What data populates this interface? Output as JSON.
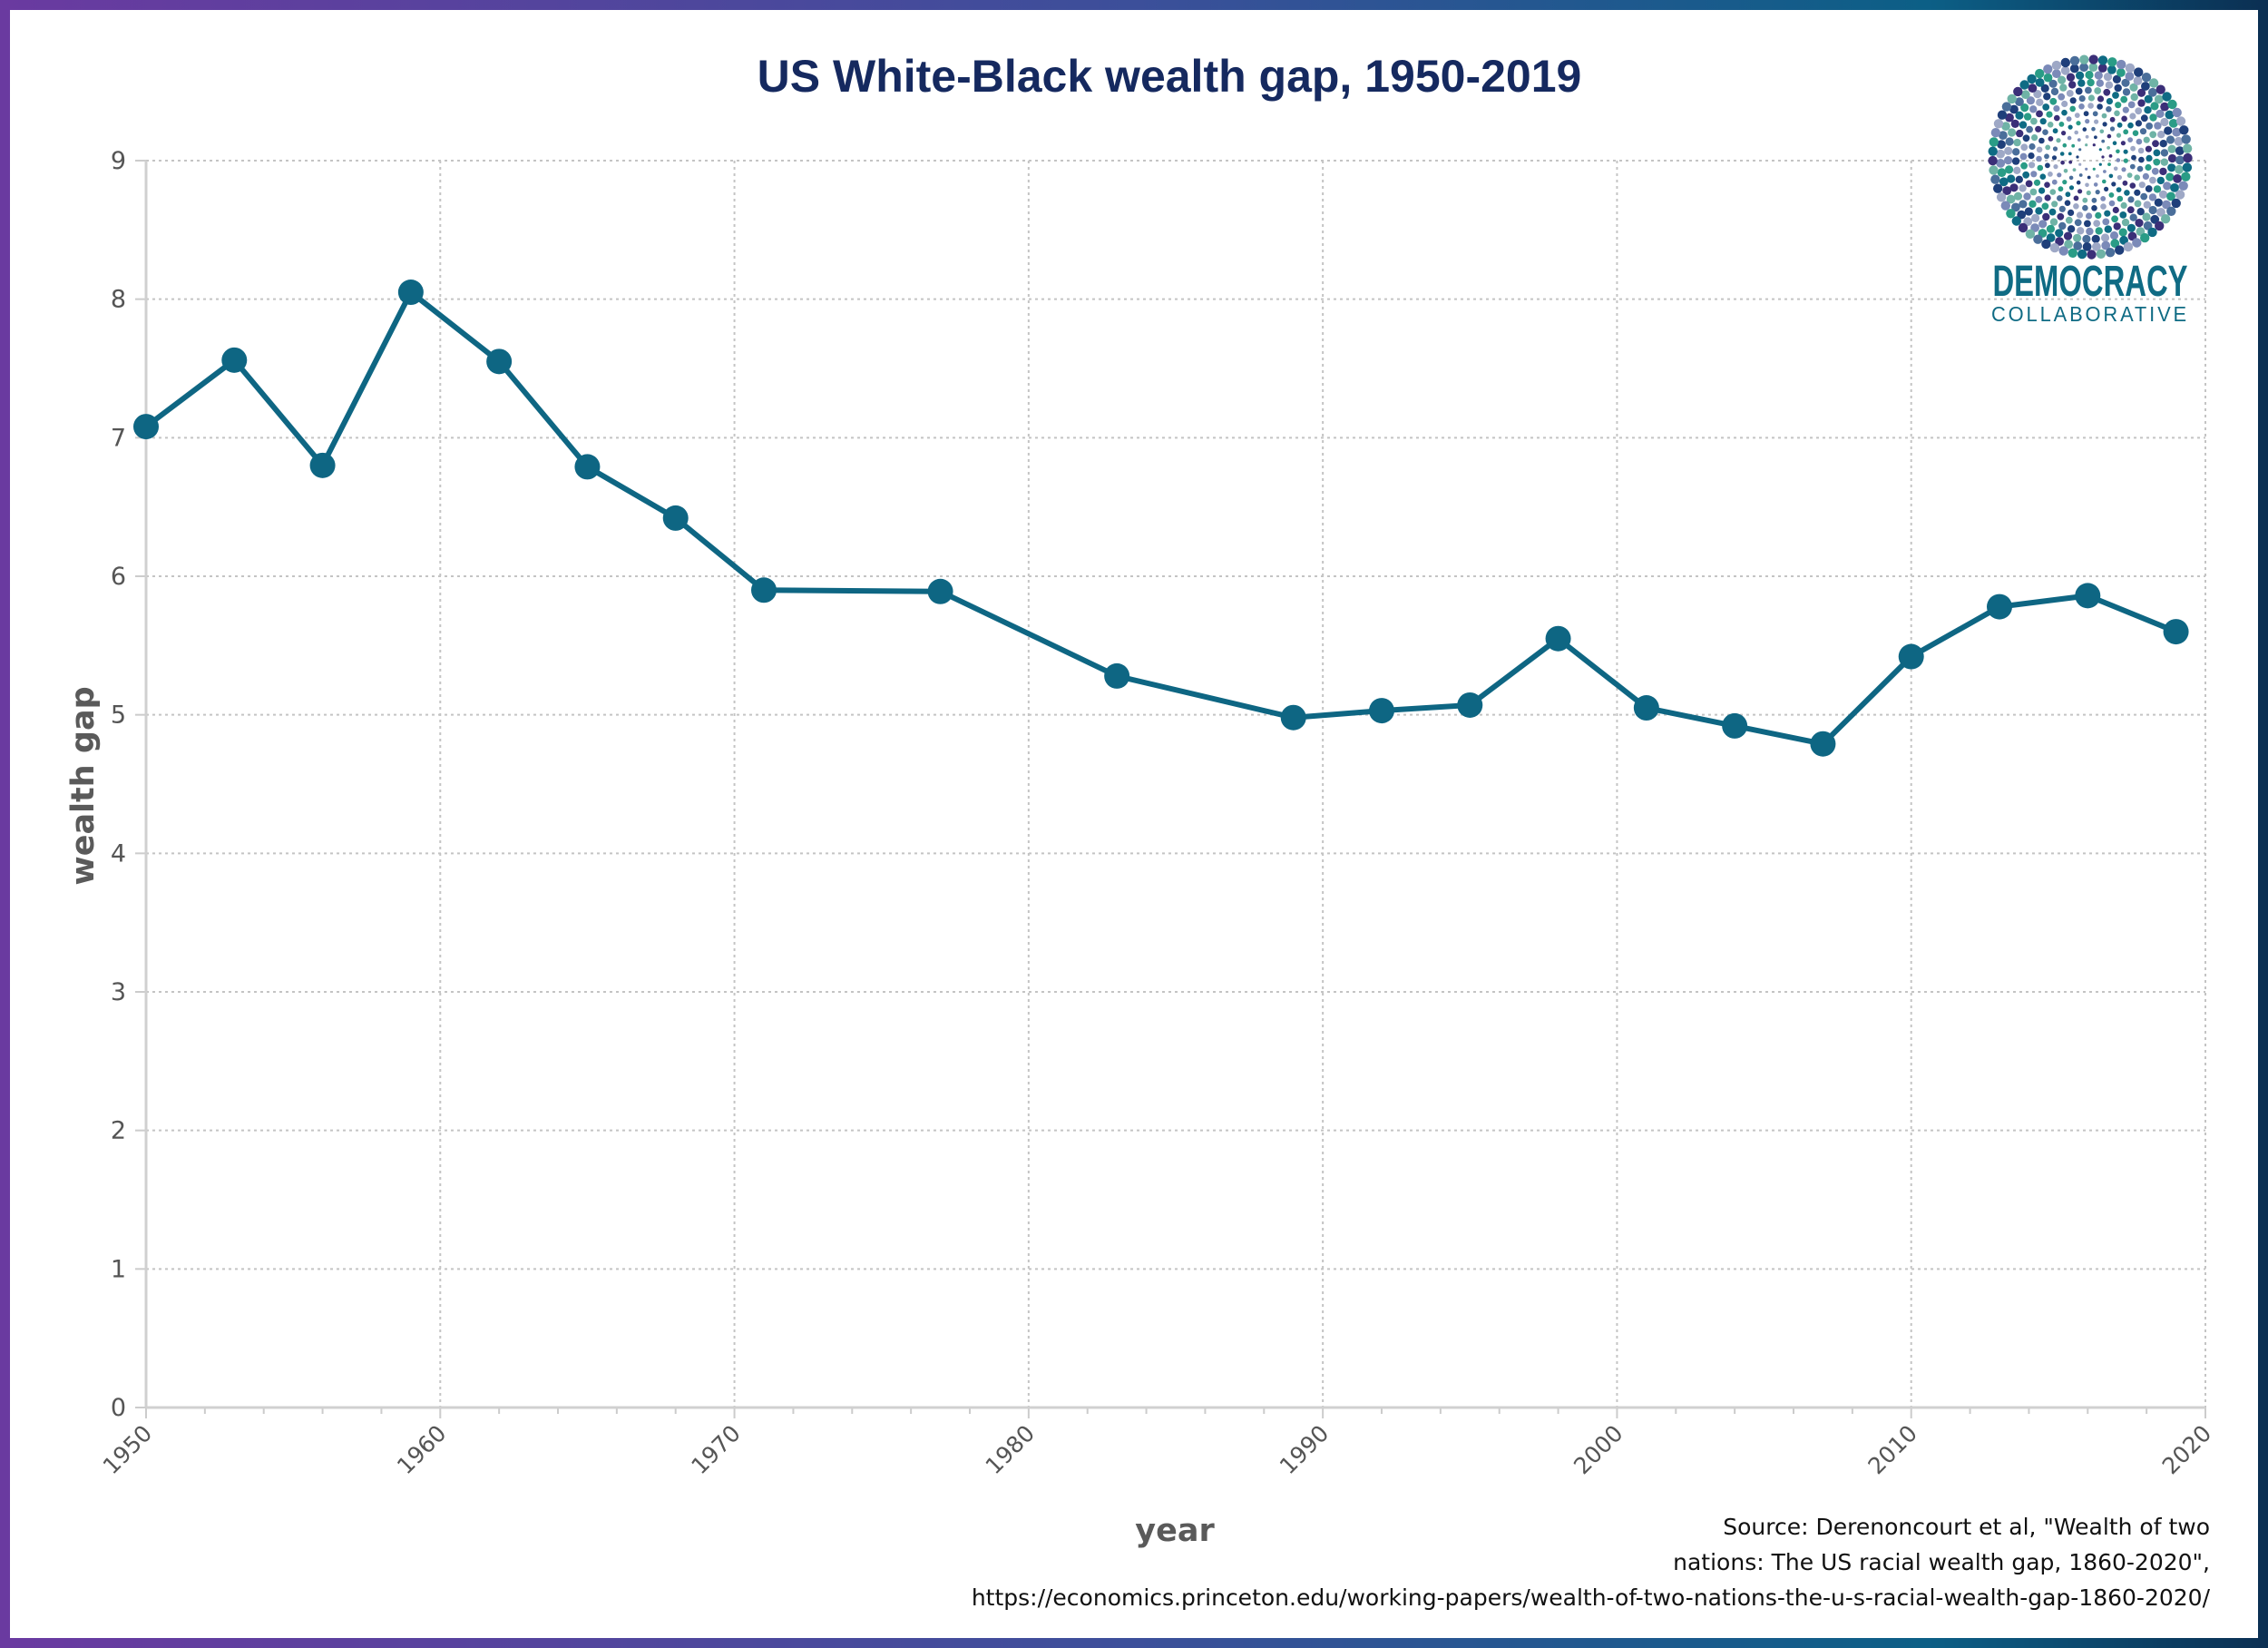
{
  "chart_data": {
    "type": "line",
    "title": "US White-Black wealth gap, 1950-2019",
    "xlabel": "year",
    "ylabel": "wealth gap",
    "xlim": [
      1950,
      2020
    ],
    "ylim": [
      0,
      9
    ],
    "x_ticks": [
      "1950",
      "1960",
      "1970",
      "1980",
      "1990",
      "2000",
      "2010",
      "2020"
    ],
    "y_ticks": [
      "0",
      "1",
      "2",
      "3",
      "4",
      "5",
      "6",
      "7",
      "8",
      "9"
    ],
    "grid": true,
    "color": "#0e6683",
    "series": [
      {
        "x": [
          1950,
          1953,
          1956,
          1959,
          1962,
          1965,
          1968,
          1971,
          1977,
          1983,
          1989,
          1992,
          1995,
          1998,
          2001,
          2004,
          2007,
          2010,
          2013,
          2016,
          2019
        ],
        "values": [
          7.08,
          7.56,
          6.8,
          8.05,
          7.55,
          6.79,
          6.42,
          5.9,
          5.89,
          5.28,
          4.98,
          5.03,
          5.07,
          5.55,
          5.05,
          4.92,
          4.79,
          5.42,
          5.78,
          5.86,
          5.6
        ]
      }
    ]
  },
  "source": {
    "line1": "Source: Derenoncourt et al, \"Wealth of two",
    "line2": "nations: The US racial wealth gap, 1860-2020\",",
    "line3": "https://economics.princeton.edu/working-papers/wealth-of-two-nations-the-u-s-racial-wealth-gap-1860-2020/"
  },
  "logo": {
    "line1": "DEMOCRACY",
    "line2": "COLLABORATIVE"
  }
}
